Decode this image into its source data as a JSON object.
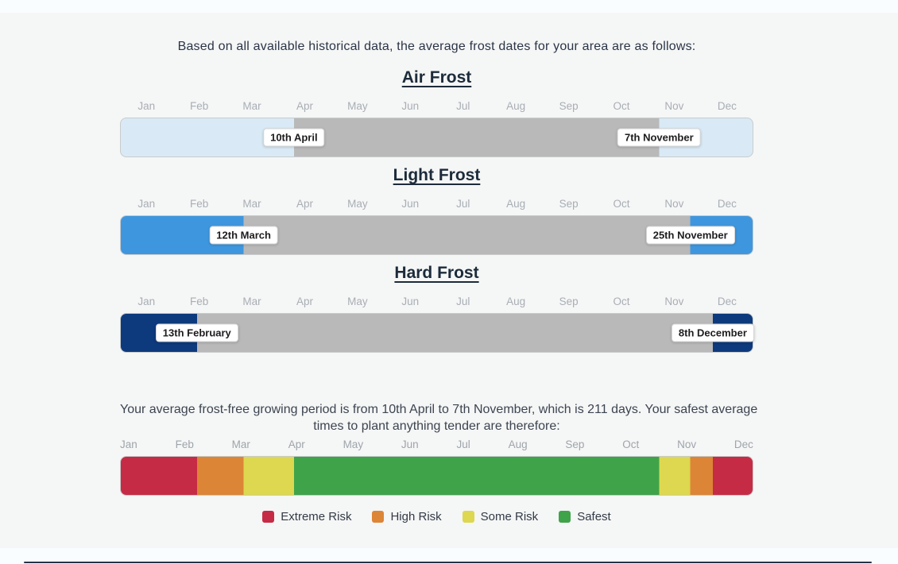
{
  "page": {
    "intro": "Based on all available historical data, the average frost dates for your area are as follows:",
    "summary_line1": "Your average frost-free growing period is from 10th April to 7th November, which is 211 days. Your safest average",
    "summary_line2": "times to plant anything tender are therefore:"
  },
  "chart_data": {
    "type": "timeline-bars",
    "months": [
      "Jan",
      "Feb",
      "Mar",
      "Apr",
      "May",
      "Jun",
      "Jul",
      "Aug",
      "Sep",
      "Oct",
      "Nov",
      "Dec"
    ],
    "colors": {
      "frost_free_gray": "#b9b9b9",
      "bar_border": "#c9cbcc",
      "page_background": "#f5f6f6",
      "strip_background": "#fafdff"
    },
    "sections": [
      {
        "title": "Air Frost",
        "start_label": "10th April",
        "end_label": "7th November",
        "start_pct": 27.4,
        "end_pct": 85.2,
        "bar_color": "#d9eaf6"
      },
      {
        "title": "Light Frost",
        "start_label": "12th March",
        "end_label": "25th November",
        "start_pct": 19.45,
        "end_pct": 90.15,
        "bar_color": "#3e97de"
      },
      {
        "title": "Hard Frost",
        "start_label": "13th February",
        "end_label": "8th December",
        "start_pct": 12.05,
        "end_pct": 93.7,
        "bar_color": "#0d3a7d"
      }
    ],
    "growing_period": {
      "from": "10th April",
      "to": "7th November",
      "days": 211
    },
    "risk_segments": [
      {
        "label": "Extreme Risk",
        "color": "#c62b45",
        "from_pct": 0,
        "to_pct": 12.05
      },
      {
        "label": "High Risk",
        "color": "#dd8536",
        "from_pct": 12.05,
        "to_pct": 19.45
      },
      {
        "label": "Some Risk",
        "color": "#ddd84f",
        "from_pct": 19.45,
        "to_pct": 27.4
      },
      {
        "label": "Safest",
        "color": "#3fa34a",
        "from_pct": 27.4,
        "to_pct": 85.2
      },
      {
        "label": "Some Risk",
        "color": "#ddd84f",
        "from_pct": 85.2,
        "to_pct": 90.15
      },
      {
        "label": "High Risk",
        "color": "#dd8536",
        "from_pct": 90.15,
        "to_pct": 93.7
      },
      {
        "label": "Extreme Risk",
        "color": "#c62b45",
        "from_pct": 93.7,
        "to_pct": 100
      }
    ],
    "legend": [
      {
        "label": "Extreme Risk",
        "color": "#c62b45"
      },
      {
        "label": "High Risk",
        "color": "#dd8536"
      },
      {
        "label": "Some Risk",
        "color": "#ddd84f"
      },
      {
        "label": "Safest",
        "color": "#3fa34a"
      }
    ]
  }
}
